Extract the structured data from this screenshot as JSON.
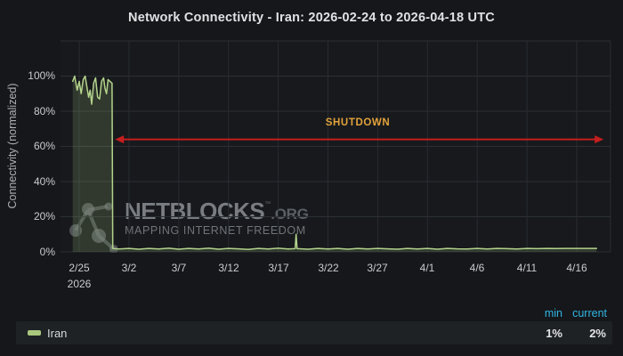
{
  "chart_data": {
    "type": "area",
    "title": "Network Connectivity - Iran: 2026-02-24 to 2026-04-18 UTC",
    "xlabel": "",
    "ylabel": "Connectivity (normalized)",
    "ylim": [
      0,
      120
    ],
    "grid": true,
    "legend_position": "bottom",
    "y_ticks": [
      "100%",
      "80%",
      "60%",
      "40%",
      "20%",
      "0%"
    ],
    "y_tick_values": [
      100,
      80,
      60,
      40,
      20,
      0
    ],
    "x_year_label": "2026",
    "x_domain_note": "days since 2026-02-24",
    "x_ticks": [
      {
        "label": "2/25",
        "day": 1
      },
      {
        "label": "3/2",
        "day": 6
      },
      {
        "label": "3/7",
        "day": 11
      },
      {
        "label": "3/12",
        "day": 16
      },
      {
        "label": "3/17",
        "day": 21
      },
      {
        "label": "3/22",
        "day": 26
      },
      {
        "label": "3/27",
        "day": 31
      },
      {
        "label": "4/1",
        "day": 36
      },
      {
        "label": "4/6",
        "day": 41
      },
      {
        "label": "4/11",
        "day": 46
      },
      {
        "label": "4/16",
        "day": 51
      }
    ],
    "series": [
      {
        "name": "Iran",
        "color": "#b3d38b",
        "fill": "rgba(174,205,131,0.18)",
        "points_day_pct": [
          [
            0.35,
            97
          ],
          [
            0.55,
            100
          ],
          [
            0.8,
            92
          ],
          [
            1.0,
            97
          ],
          [
            1.2,
            90
          ],
          [
            1.4,
            98
          ],
          [
            1.6,
            100
          ],
          [
            1.8,
            93
          ],
          [
            1.95,
            88
          ],
          [
            2.1,
            92
          ],
          [
            2.25,
            84
          ],
          [
            2.45,
            96
          ],
          [
            2.65,
            99
          ],
          [
            2.85,
            88
          ],
          [
            3.05,
            87
          ],
          [
            3.25,
            97
          ],
          [
            3.45,
            99
          ],
          [
            3.6,
            93
          ],
          [
            3.75,
            90
          ],
          [
            3.9,
            98
          ],
          [
            4.1,
            97
          ],
          [
            4.3,
            96
          ],
          [
            4.37,
            2
          ],
          [
            5,
            1.6
          ],
          [
            6,
            2
          ],
          [
            7,
            1.5
          ],
          [
            8,
            2
          ],
          [
            9,
            1.6
          ],
          [
            10,
            2.1
          ],
          [
            11,
            1.5
          ],
          [
            12,
            2
          ],
          [
            13,
            1.6
          ],
          [
            14,
            2.1
          ],
          [
            15,
            1.5
          ],
          [
            16,
            2
          ],
          [
            17,
            1.7
          ],
          [
            18,
            1.4
          ],
          [
            19,
            2
          ],
          [
            20,
            1.6
          ],
          [
            21,
            2.1
          ],
          [
            22,
            1.6
          ],
          [
            22.7,
            1.8
          ],
          [
            22.8,
            10
          ],
          [
            22.9,
            1.8
          ],
          [
            24,
            1.5
          ],
          [
            25,
            2
          ],
          [
            26,
            1.6
          ],
          [
            27,
            2
          ],
          [
            28,
            1.5
          ],
          [
            29,
            2
          ],
          [
            30,
            1.6
          ],
          [
            31,
            2
          ],
          [
            32,
            1.7
          ],
          [
            33,
            1.5
          ],
          [
            34,
            2
          ],
          [
            35,
            1.6
          ],
          [
            36,
            2
          ],
          [
            37,
            1.5
          ],
          [
            38,
            2
          ],
          [
            39,
            1.7
          ],
          [
            40,
            1.6
          ],
          [
            41,
            2
          ],
          [
            42,
            1.6
          ],
          [
            43,
            2
          ],
          [
            44,
            1.8
          ],
          [
            45,
            1.6
          ],
          [
            46,
            2
          ],
          [
            47,
            1.8
          ],
          [
            48,
            2
          ],
          [
            49,
            1.9
          ],
          [
            50,
            2
          ],
          [
            51,
            2
          ],
          [
            52,
            2
          ],
          [
            53,
            2
          ]
        ]
      }
    ],
    "annotation": {
      "label": "SHUTDOWN",
      "label_color": "#e2a23c",
      "arrow_color": "#c41e1e",
      "y_pct": 64,
      "from_day": 4.6,
      "to_day": 53.7
    }
  },
  "watermark": {
    "brand": "NETBLOCKS",
    "tm": "™",
    "suffix": ".ORG",
    "tagline": "MAPPING INTERNET FREEDOM"
  },
  "legend": {
    "columns": [
      "min",
      "current"
    ],
    "rows": [
      {
        "name": "Iran",
        "min": "1%",
        "current": "2%",
        "color": "#a9c87e"
      }
    ]
  }
}
